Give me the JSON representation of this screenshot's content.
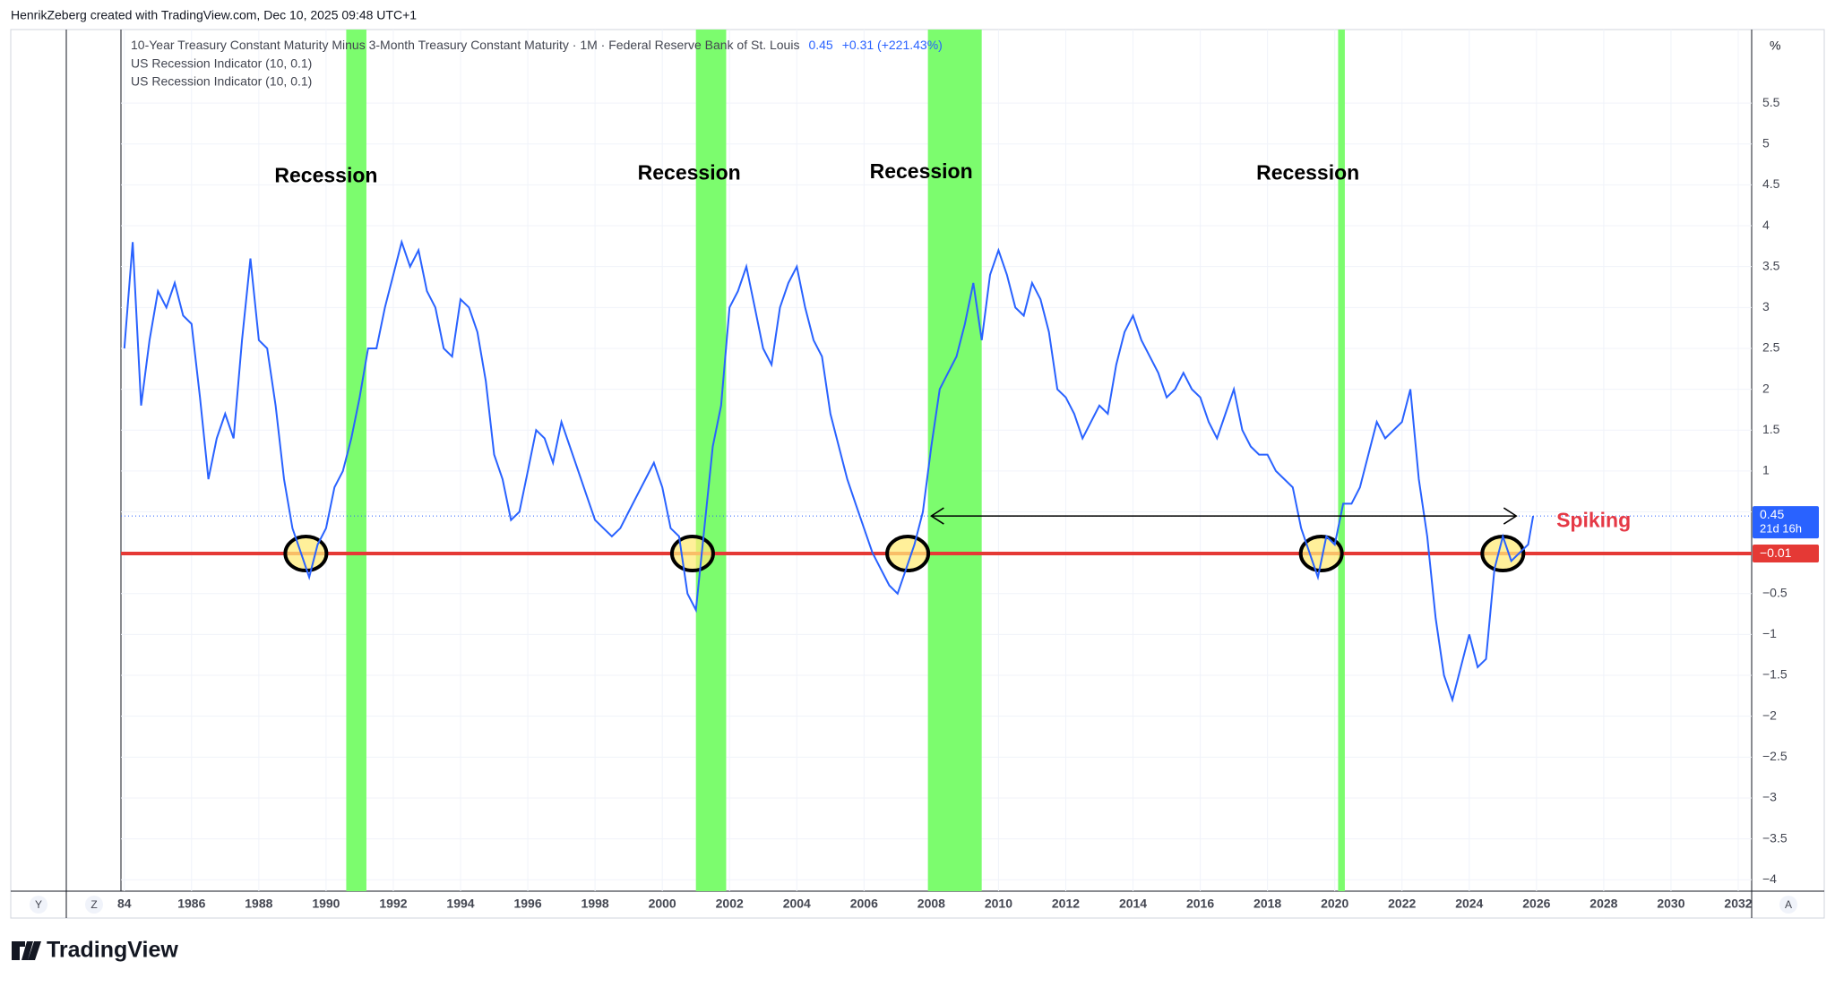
{
  "header": "HenrikZeberg created with TradingView.com, Dec 10, 2025 09:48 UTC+1",
  "footer": "TradingView",
  "buttons": [
    "Y",
    "Z",
    "A"
  ],
  "unit": "%",
  "chart_data": {
    "type": "line",
    "legend": {
      "title": "10-Year Treasury Constant Maturity Minus 3-Month Treasury Constant Maturity · 1M · Federal Reserve Bank of St. Louis",
      "change": "+0.31 (+221.43%)",
      "indicators": [
        "US Recession Indicator (10, 0.1)",
        "US Recession Indicator (10, 0.1)"
      ]
    },
    "countdown": "21d 16h",
    "xlim": [
      1983.9,
      2032.4
    ],
    "ylim": [
      -4.14,
      6.4
    ],
    "xticks": [
      {
        "value": 1984,
        "label": "84"
      },
      1986,
      1988,
      1990,
      1992,
      1994,
      1996,
      1998,
      2000,
      2002,
      2004,
      2006,
      2008,
      2010,
      2012,
      2014,
      2016,
      2018,
      2020,
      2022,
      2024,
      2026,
      2028,
      2030,
      2032
    ],
    "yticks": [
      {
        "value": -4,
        "label": "−4"
      },
      {
        "value": -3.5,
        "label": "−3.5"
      },
      {
        "value": -3,
        "label": "−3"
      },
      {
        "value": -2.5,
        "label": "−2.5"
      },
      {
        "value": -2,
        "label": "−2"
      },
      {
        "value": -1.5,
        "label": "−1.5"
      },
      {
        "value": -1,
        "label": "−1"
      },
      {
        "value": -0.5,
        "label": "−0.5"
      },
      0.5,
      1,
      1.5,
      2,
      2.5,
      3,
      3.5,
      4,
      4.5,
      5,
      5.5
    ],
    "grid": true,
    "recessions": [
      {
        "start": 1990.6,
        "end": 1991.2
      },
      {
        "start": 2001.0,
        "end": 2001.9
      },
      {
        "start": 2007.9,
        "end": 2009.5
      },
      {
        "start": 2020.1,
        "end": 2020.3
      }
    ],
    "recession_color": "#7cfc6e",
    "red_line": {
      "value": -0.01,
      "label": "−0.01",
      "color": "#e53935"
    },
    "arrow": {
      "x0": 2008.0,
      "x1": 2025.4,
      "y": 0.45
    },
    "highlights": [
      1989.4,
      2000.9,
      2007.3,
      2019.6,
      2025.0
    ],
    "annotations": [
      {
        "text": "Recession",
        "x": 1990.0,
        "y": 4.6,
        "color": "#000000"
      },
      {
        "text": "Recession",
        "x": 2000.8,
        "y": 4.63,
        "color": "#000000"
      },
      {
        "text": "Recession",
        "x": 2007.7,
        "y": 4.65,
        "color": "#000000"
      },
      {
        "text": "Recession",
        "x": 2019.2,
        "y": 4.63,
        "color": "#000000"
      },
      {
        "text": "Spiking",
        "x": 2027.7,
        "y": 0.38,
        "color": "#e53946"
      }
    ],
    "series": [
      {
        "color": "#2962ff",
        "x": [
          1984.0,
          1984.25,
          1984.5,
          1984.75,
          1985.0,
          1985.25,
          1985.5,
          1985.75,
          1986.0,
          1986.25,
          1986.5,
          1986.75,
          1987.0,
          1987.25,
          1987.5,
          1987.75,
          1988.0,
          1988.25,
          1988.5,
          1988.75,
          1989.0,
          1989.25,
          1989.5,
          1989.75,
          1990.0,
          1990.25,
          1990.5,
          1990.75,
          1991.0,
          1991.25,
          1991.5,
          1991.75,
          1992.0,
          1992.25,
          1992.5,
          1992.75,
          1993.0,
          1993.25,
          1993.5,
          1993.75,
          1994.0,
          1994.25,
          1994.5,
          1994.75,
          1995.0,
          1995.25,
          1995.5,
          1995.75,
          1996.0,
          1996.25,
          1996.5,
          1996.75,
          1997.0,
          1997.25,
          1997.5,
          1997.75,
          1998.0,
          1998.25,
          1998.5,
          1998.75,
          1999.0,
          1999.25,
          1999.5,
          1999.75,
          2000.0,
          2000.25,
          2000.5,
          2000.75,
          2001.0,
          2001.25,
          2001.5,
          2001.75,
          2002.0,
          2002.25,
          2002.5,
          2002.75,
          2003.0,
          2003.25,
          2003.5,
          2003.75,
          2004.0,
          2004.25,
          2004.5,
          2004.75,
          2005.0,
          2005.25,
          2005.5,
          2005.75,
          2006.0,
          2006.25,
          2006.5,
          2006.75,
          2007.0,
          2007.25,
          2007.5,
          2007.75,
          2008.0,
          2008.25,
          2008.5,
          2008.75,
          2009.0,
          2009.25,
          2009.5,
          2009.75,
          2010.0,
          2010.25,
          2010.5,
          2010.75,
          2011.0,
          2011.25,
          2011.5,
          2011.75,
          2012.0,
          2012.25,
          2012.5,
          2012.75,
          2013.0,
          2013.25,
          2013.5,
          2013.75,
          2014.0,
          2014.25,
          2014.5,
          2014.75,
          2015.0,
          2015.25,
          2015.5,
          2015.75,
          2016.0,
          2016.25,
          2016.5,
          2016.75,
          2017.0,
          2017.25,
          2017.5,
          2017.75,
          2018.0,
          2018.25,
          2018.5,
          2018.75,
          2019.0,
          2019.25,
          2019.5,
          2019.75,
          2020.0,
          2020.25,
          2020.5,
          2020.75,
          2021.0,
          2021.25,
          2021.5,
          2021.75,
          2022.0,
          2022.25,
          2022.5,
          2022.75,
          2023.0,
          2023.25,
          2023.5,
          2023.75,
          2024.0,
          2024.25,
          2024.5,
          2024.75,
          2025.0,
          2025.25,
          2025.5,
          2025.75,
          2025.9
        ],
        "values": [
          2.5,
          3.8,
          1.8,
          2.6,
          3.2,
          3.0,
          3.3,
          2.9,
          2.8,
          1.9,
          0.9,
          1.4,
          1.7,
          1.4,
          2.6,
          3.6,
          2.6,
          2.5,
          1.8,
          0.9,
          0.3,
          0.0,
          -0.3,
          0.1,
          0.3,
          0.8,
          1.0,
          1.4,
          1.9,
          2.5,
          2.5,
          3.0,
          3.4,
          3.8,
          3.5,
          3.7,
          3.2,
          3.0,
          2.5,
          2.4,
          3.1,
          3.0,
          2.7,
          2.1,
          1.2,
          0.9,
          0.4,
          0.5,
          1.0,
          1.5,
          1.4,
          1.1,
          1.6,
          1.3,
          1.0,
          0.7,
          0.4,
          0.3,
          0.2,
          0.3,
          0.5,
          0.7,
          0.9,
          1.1,
          0.8,
          0.3,
          0.2,
          -0.5,
          -0.7,
          0.3,
          1.3,
          1.8,
          3.0,
          3.2,
          3.5,
          3.0,
          2.5,
          2.3,
          3.0,
          3.3,
          3.5,
          3.0,
          2.6,
          2.4,
          1.7,
          1.3,
          0.9,
          0.6,
          0.3,
          0.0,
          -0.2,
          -0.4,
          -0.5,
          -0.2,
          0.1,
          0.5,
          1.3,
          2.0,
          2.2,
          2.4,
          2.8,
          3.3,
          2.6,
          3.4,
          3.7,
          3.4,
          3.0,
          2.9,
          3.3,
          3.1,
          2.7,
          2.0,
          1.9,
          1.7,
          1.4,
          1.6,
          1.8,
          1.7,
          2.3,
          2.7,
          2.9,
          2.6,
          2.4,
          2.2,
          1.9,
          2.0,
          2.2,
          2.0,
          1.9,
          1.6,
          1.4,
          1.7,
          2.0,
          1.5,
          1.3,
          1.2,
          1.2,
          1.0,
          0.9,
          0.8,
          0.3,
          0.0,
          -0.3,
          0.2,
          0.1,
          0.6,
          0.6,
          0.8,
          1.2,
          1.6,
          1.4,
          1.5,
          1.6,
          2.0,
          0.9,
          0.2,
          -0.8,
          -1.5,
          -1.8,
          -1.4,
          -1.0,
          -1.4,
          -1.3,
          -0.2,
          0.2,
          -0.1,
          0.0,
          0.1,
          0.45
        ]
      }
    ]
  }
}
